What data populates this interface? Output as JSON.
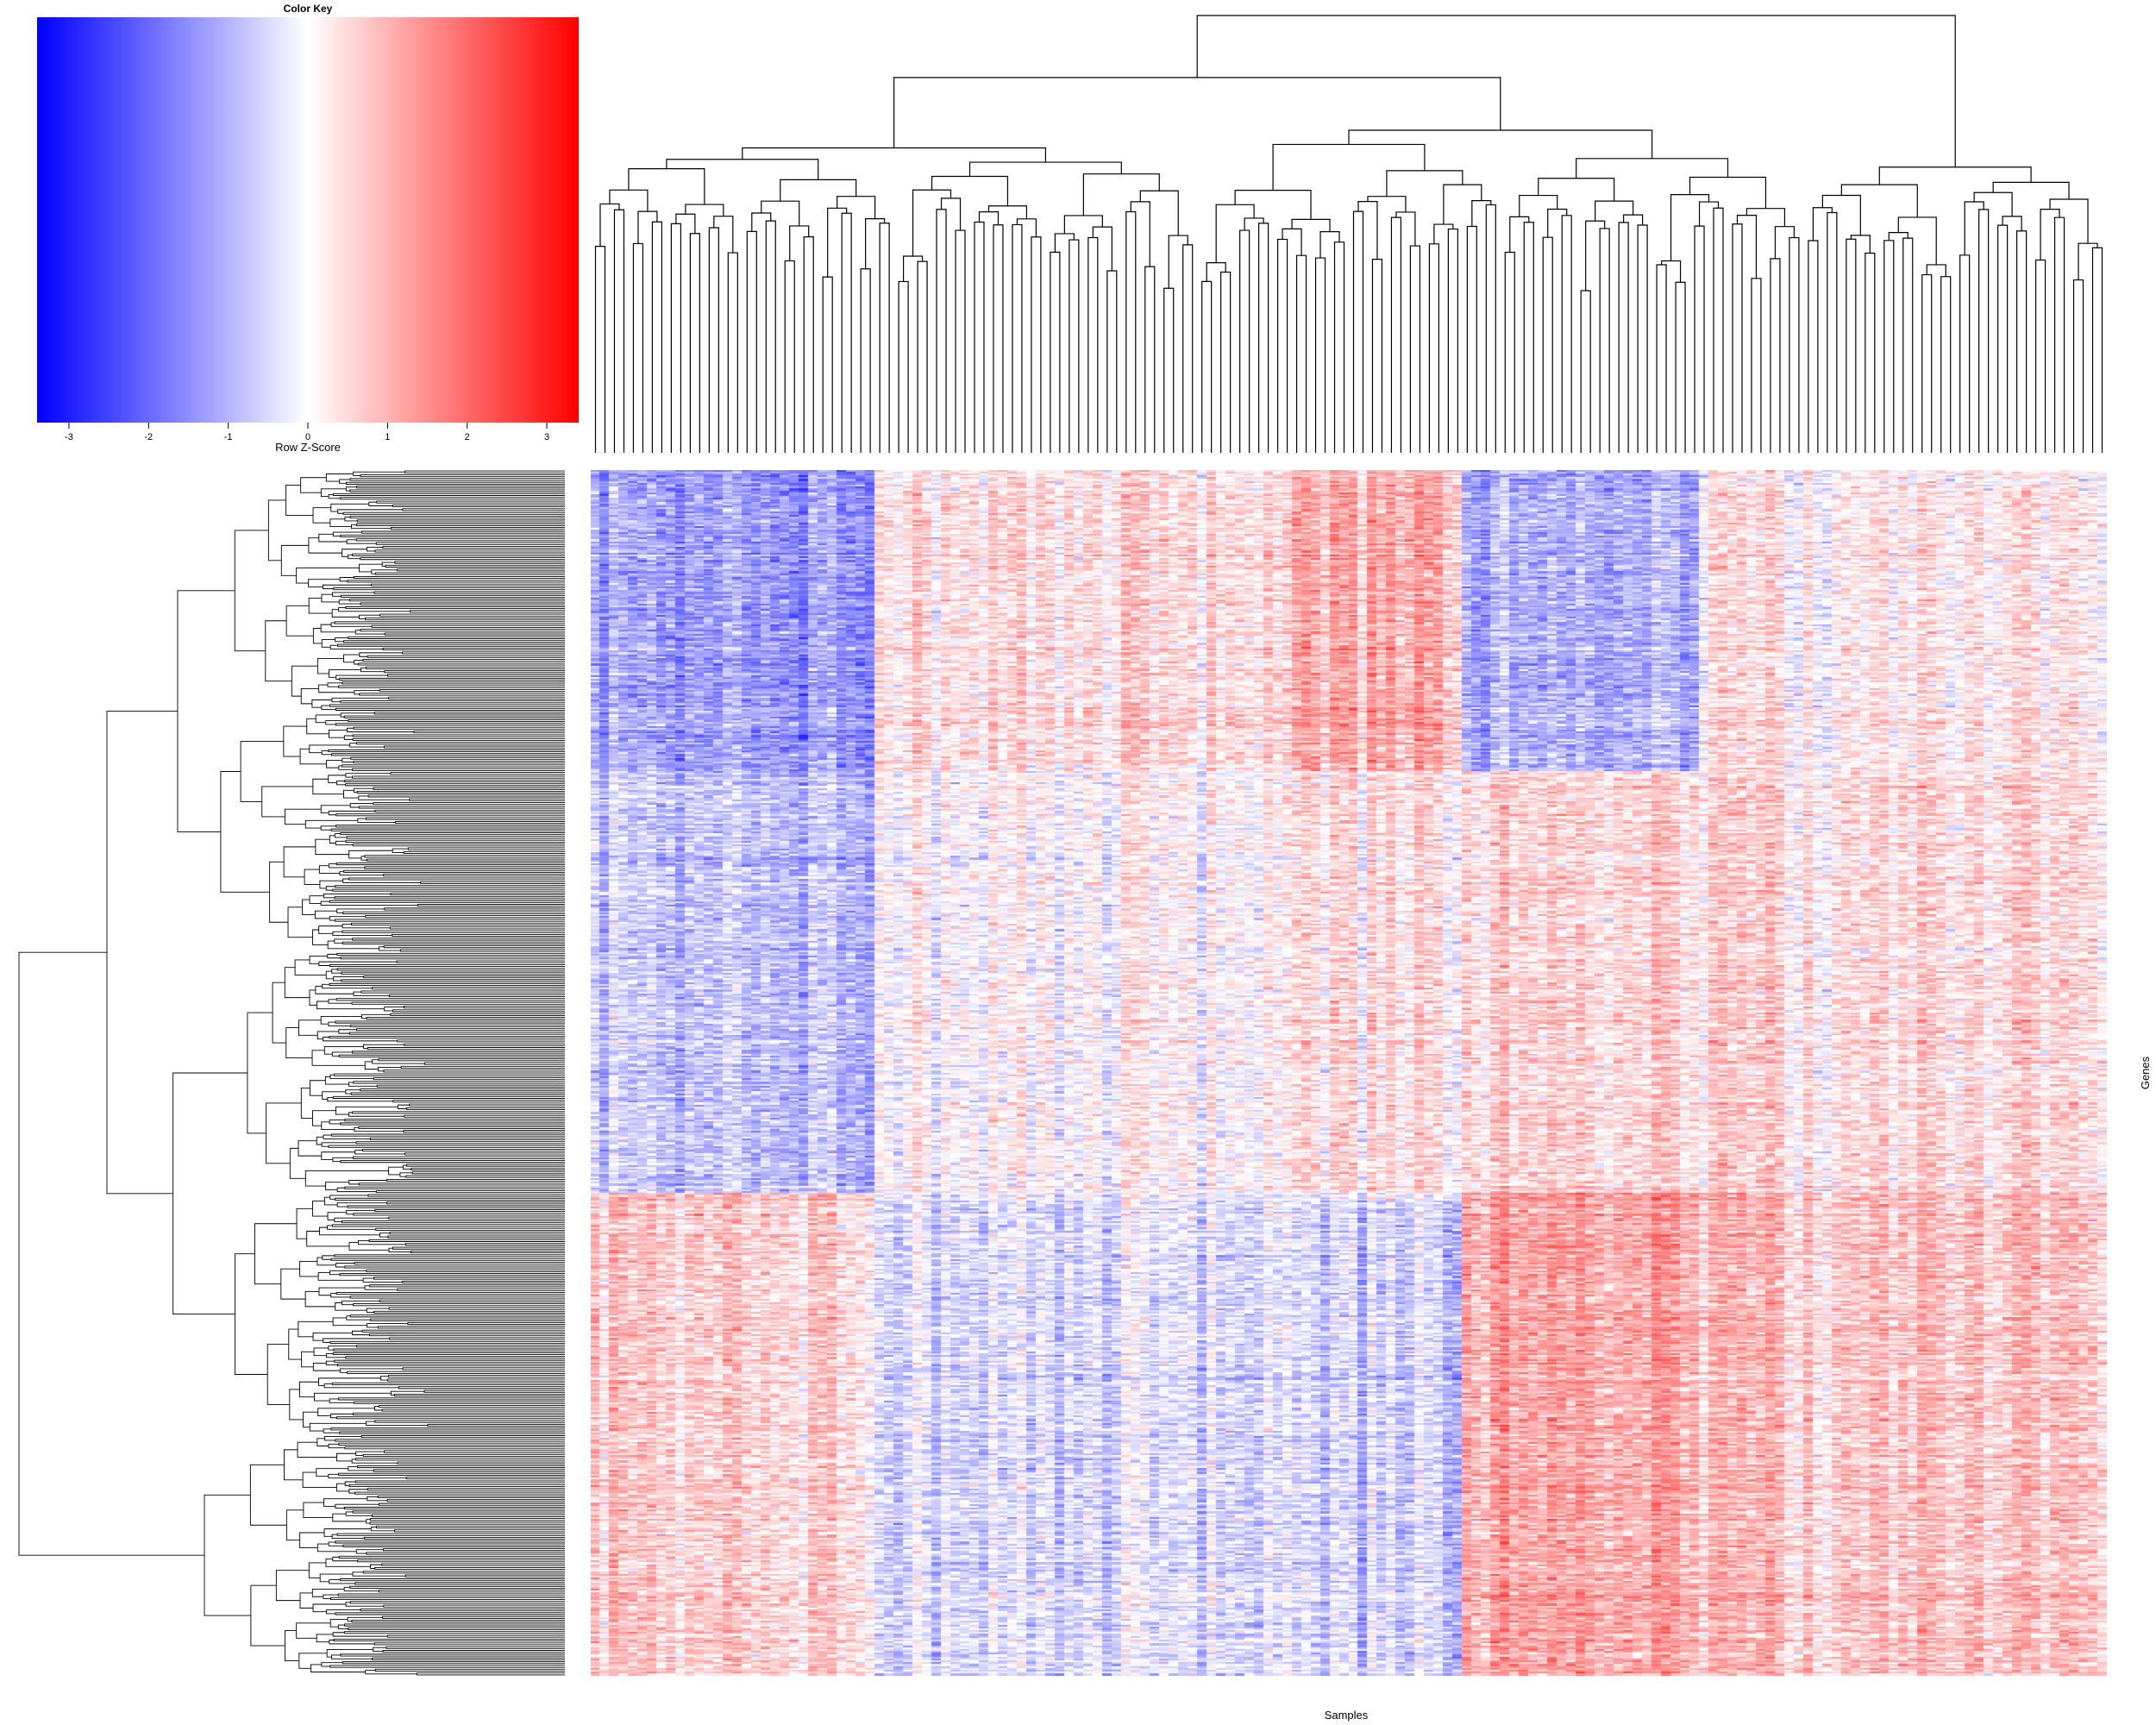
{
  "chart_data": {
    "type": "heatmap",
    "title": "",
    "xlabel": "Samples",
    "ylabel": "Genes",
    "n_samples": 160,
    "n_genes": 640,
    "row_scaled": true,
    "color_key": {
      "title": "Color Key",
      "label": "Row Z-Score",
      "range": [
        -3.4,
        3.4
      ],
      "ticks": [
        -3,
        -2,
        -1,
        0,
        1,
        2,
        3
      ],
      "tick_labels": [
        "-3",
        "-2",
        "-1",
        "0",
        "1",
        "2",
        "3"
      ],
      "low_color": "#0000ff",
      "mid_color": "#ffffff",
      "high_color": "#ff0000"
    },
    "column_dendrogram": true,
    "row_dendrogram": true,
    "column_group_summary": [
      {
        "samples": "1-30",
        "pattern": "low in upper gene block, high in lower gene block"
      },
      {
        "samples": "31-74",
        "pattern": "mixed, moderately high in upper gene block"
      },
      {
        "samples": "75-92",
        "pattern": "high in upper gene blocks"
      },
      {
        "samples": "93-117",
        "pattern": "low in upper gene block, high in lower gene block"
      },
      {
        "samples": "118-160",
        "pattern": "mixed, high in lower gene block"
      }
    ]
  }
}
